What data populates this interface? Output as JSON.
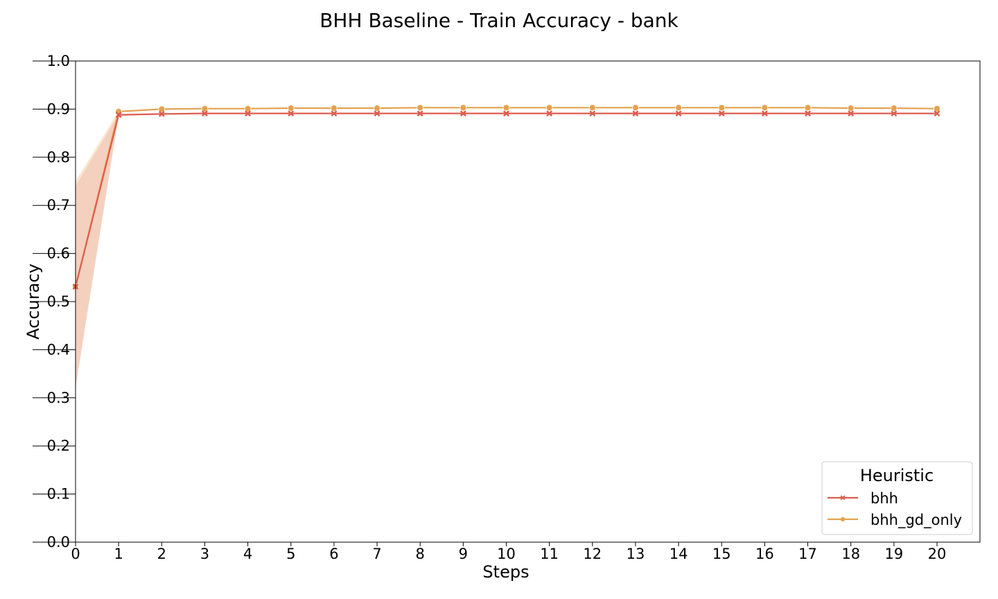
{
  "chart_data": {
    "type": "line",
    "title": "BHH Baseline - Train Accuracy - bank",
    "xlabel": "Steps",
    "ylabel": "Accuracy",
    "xlim": [
      0,
      20
    ],
    "ylim": [
      0.0,
      1.0
    ],
    "x_ticks": [
      "0",
      "1",
      "2",
      "3",
      "4",
      "5",
      "6",
      "7",
      "8",
      "9",
      "10",
      "11",
      "12",
      "13",
      "14",
      "15",
      "16",
      "17",
      "18",
      "19",
      "20"
    ],
    "y_ticks": [
      "0.0",
      "0.1",
      "0.2",
      "0.3",
      "0.4",
      "0.5",
      "0.6",
      "0.7",
      "0.8",
      "0.9",
      "1.0"
    ],
    "grid": false,
    "legend": {
      "title": "Heuristic",
      "placement": "bottom-right"
    },
    "x": [
      0,
      1,
      2,
      3,
      4,
      5,
      6,
      7,
      8,
      9,
      10,
      11,
      12,
      13,
      14,
      15,
      16,
      17,
      18,
      19,
      20
    ],
    "series": [
      {
        "name": "bhh",
        "color": "#dd5d4f",
        "band_color": "#f2c8b8",
        "marker": "x",
        "values": [
          0.531,
          0.888,
          0.89,
          0.891,
          0.891,
          0.891,
          0.891,
          0.891,
          0.891,
          0.891,
          0.891,
          0.891,
          0.891,
          0.891,
          0.891,
          0.891,
          0.891,
          0.891,
          0.891,
          0.891,
          0.891
        ],
        "band_lower": [
          0.32,
          0.886,
          0.889,
          0.89,
          0.89,
          0.89,
          0.89,
          0.89,
          0.89,
          0.89,
          0.89,
          0.89,
          0.89,
          0.89,
          0.89,
          0.89,
          0.89,
          0.89,
          0.89,
          0.89,
          0.89
        ],
        "band_upper": [
          0.74,
          0.89,
          0.891,
          0.892,
          0.892,
          0.892,
          0.892,
          0.892,
          0.892,
          0.892,
          0.892,
          0.892,
          0.892,
          0.892,
          0.892,
          0.892,
          0.892,
          0.892,
          0.892,
          0.892,
          0.892
        ]
      },
      {
        "name": "bhh_gd_only",
        "color": "#e4a24f",
        "band_color": "#f7dfc0",
        "marker": "o",
        "values": [
          0.531,
          0.895,
          0.9,
          0.901,
          0.901,
          0.902,
          0.902,
          0.902,
          0.903,
          0.903,
          0.903,
          0.903,
          0.903,
          0.903,
          0.903,
          0.903,
          0.903,
          0.903,
          0.902,
          0.902,
          0.901
        ],
        "band_lower": [
          0.33,
          0.894,
          0.899,
          0.9,
          0.9,
          0.901,
          0.901,
          0.901,
          0.902,
          0.902,
          0.902,
          0.902,
          0.902,
          0.902,
          0.902,
          0.902,
          0.902,
          0.902,
          0.901,
          0.901,
          0.9
        ],
        "band_upper": [
          0.75,
          0.896,
          0.901,
          0.902,
          0.902,
          0.903,
          0.903,
          0.903,
          0.904,
          0.904,
          0.904,
          0.904,
          0.904,
          0.904,
          0.904,
          0.904,
          0.904,
          0.904,
          0.903,
          0.903,
          0.902
        ]
      }
    ]
  }
}
